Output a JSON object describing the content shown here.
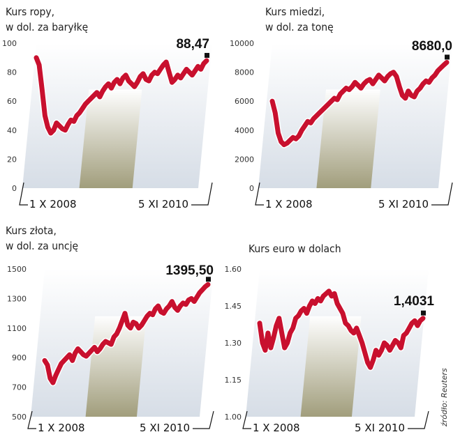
{
  "source": "źródło: Reuters",
  "colors": {
    "line": "#c8102e",
    "bg_light": "#d6dde6",
    "band": "#9e9a76"
  },
  "chart_data": [
    {
      "type": "line",
      "title_lines": [
        "Kurs ropy,",
        "w dol. za baryłkę"
      ],
      "yticks": [
        "100",
        "80",
        "60",
        "40",
        "20",
        "0"
      ],
      "ylim": [
        0,
        100
      ],
      "xlabels": [
        "1 X 2008",
        "5 XI 2010"
      ],
      "last_value": "88,47",
      "values": [
        90,
        85,
        68,
        50,
        42,
        38,
        40,
        45,
        43,
        41,
        40,
        44,
        47,
        46,
        50,
        52,
        55,
        58,
        60,
        62,
        64,
        66,
        63,
        67,
        70,
        72,
        69,
        73,
        75,
        72,
        76,
        78,
        74,
        72,
        70,
        73,
        77,
        79,
        75,
        74,
        78,
        80,
        79,
        82,
        85,
        87,
        80,
        73,
        75,
        78,
        76,
        79,
        82,
        80,
        78,
        81,
        84,
        82,
        86,
        88
      ]
    },
    {
      "type": "line",
      "title_lines": [
        "Kurs miedzi,",
        "w dol. za tonę"
      ],
      "yticks": [
        "10000",
        "8000",
        "6000",
        "4000",
        "2000",
        "0"
      ],
      "ylim": [
        0,
        10000
      ],
      "xlabels": [
        "1 X 2008",
        "5 XI 2010"
      ],
      "last_value": "8680,0",
      "values": [
        6000,
        5200,
        3800,
        3200,
        3000,
        3100,
        3300,
        3500,
        3400,
        3600,
        4000,
        4300,
        4600,
        4500,
        4800,
        5000,
        5200,
        5400,
        5600,
        5800,
        6000,
        6200,
        6100,
        6500,
        6700,
        6900,
        6800,
        7000,
        7300,
        7100,
        6900,
        7200,
        7400,
        7500,
        7200,
        7500,
        7800,
        7600,
        7400,
        7700,
        7900,
        8000,
        7700,
        7000,
        6400,
        6200,
        6700,
        6400,
        6300,
        6700,
        6900,
        7200,
        7400,
        7300,
        7600,
        7800,
        8100,
        8300,
        8500,
        8680
      ]
    },
    {
      "type": "line",
      "title_lines": [
        "Kurs złota,",
        "w dol. za uncję"
      ],
      "yticks": [
        "1500",
        "1300",
        "1100",
        "900",
        "700",
        "500"
      ],
      "ylim": [
        500,
        1500
      ],
      "xlabels": [
        "1 X 2008",
        "5 XI 2010"
      ],
      "last_value": "1395,50",
      "values": [
        880,
        850,
        760,
        730,
        780,
        820,
        860,
        880,
        900,
        920,
        880,
        930,
        960,
        940,
        920,
        910,
        930,
        950,
        970,
        940,
        960,
        990,
        1010,
        1000,
        990,
        1040,
        1060,
        1100,
        1150,
        1200,
        1120,
        1100,
        1140,
        1130,
        1100,
        1120,
        1150,
        1180,
        1200,
        1190,
        1230,
        1250,
        1210,
        1200,
        1230,
        1250,
        1280,
        1240,
        1220,
        1250,
        1270,
        1260,
        1290,
        1300,
        1280,
        1310,
        1340,
        1360,
        1380,
        1395
      ]
    },
    {
      "type": "line",
      "title_lines": [
        "Kurs euro w dolach"
      ],
      "yticks": [
        "1.60",
        "1.45",
        "1.30",
        "1.15",
        "1.00"
      ],
      "ylim": [
        1.0,
        1.6
      ],
      "xlabels": [
        "1 X 2008",
        "5 XI 2010"
      ],
      "last_value": "1,4031",
      "values": [
        1.38,
        1.3,
        1.27,
        1.34,
        1.28,
        1.32,
        1.37,
        1.4,
        1.34,
        1.28,
        1.3,
        1.34,
        1.36,
        1.4,
        1.41,
        1.43,
        1.44,
        1.42,
        1.45,
        1.47,
        1.46,
        1.48,
        1.47,
        1.49,
        1.5,
        1.51,
        1.49,
        1.5,
        1.46,
        1.44,
        1.42,
        1.38,
        1.37,
        1.35,
        1.34,
        1.36,
        1.33,
        1.3,
        1.26,
        1.22,
        1.2,
        1.23,
        1.27,
        1.25,
        1.27,
        1.3,
        1.29,
        1.27,
        1.29,
        1.31,
        1.3,
        1.28,
        1.33,
        1.34,
        1.36,
        1.38,
        1.39,
        1.37,
        1.39,
        1.4
      ]
    }
  ]
}
